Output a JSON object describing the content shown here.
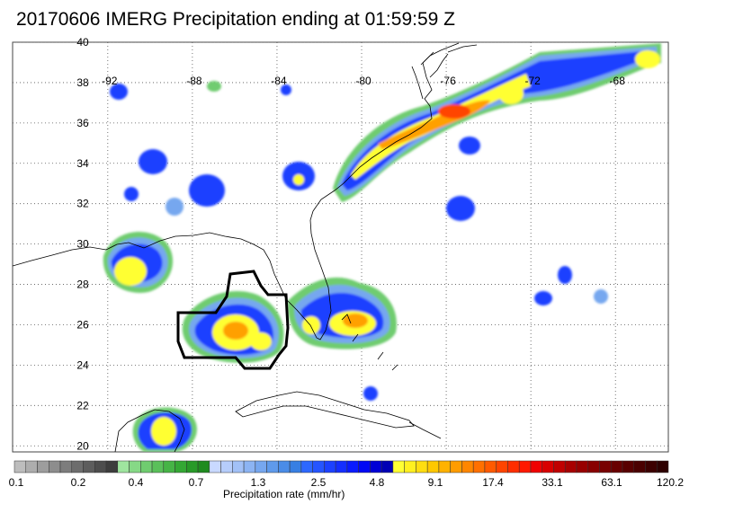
{
  "title": "20170606 IMERG Precipitation ending at 01:59:59 Z",
  "map": {
    "lon_ticks": [
      "-92",
      "-88",
      "-84",
      "-80",
      "-76",
      "-72",
      "-68"
    ],
    "lat_ticks": [
      "40",
      "38",
      "36",
      "34",
      "32",
      "30",
      "28",
      "26",
      "24",
      "22",
      "20"
    ],
    "lon_range": [
      -96.5,
      -65.5
    ],
    "lat_range": [
      19.7,
      40.0
    ],
    "grid": true,
    "gridline_style": "dotted"
  },
  "colorbar": {
    "title": "Precipitation rate (mm/hr)",
    "labels": [
      "0.1",
      "0.2",
      "0.4",
      "0.7",
      "1.3",
      "2.5",
      "4.8",
      "9.1",
      "17.4",
      "33.1",
      "63.1",
      "120.2"
    ],
    "colors": [
      "#bdbdbd",
      "#adadad",
      "#9d9d9d",
      "#8d8d8d",
      "#7d7d7d",
      "#6d6d6d",
      "#5d5d5d",
      "#4d4d4d",
      "#3d3d3d",
      "#9fe59f",
      "#86d986",
      "#6fcc6f",
      "#5ac05a",
      "#46b446",
      "#34a834",
      "#289a28",
      "#1f8b1f",
      "#c9d9ff",
      "#b6cdfb",
      "#a2c1f7",
      "#8cb4f3",
      "#76a7ef",
      "#5f9aeb",
      "#4a8ce7",
      "#377fe3",
      "#2d68ff",
      "#2555ff",
      "#1c41ff",
      "#142eff",
      "#0a1aff",
      "#0008f5",
      "#0000d6",
      "#0000b5",
      "#ffff33",
      "#fff020",
      "#ffdd10",
      "#ffc800",
      "#ffb200",
      "#ff9c00",
      "#ff8600",
      "#ff7000",
      "#ff5a00",
      "#ff4400",
      "#ff2e00",
      "#ff1800",
      "#f00000",
      "#d80000",
      "#c00000",
      "#a80000",
      "#980000",
      "#880000",
      "#780000",
      "#680000",
      "#580000",
      "#4a0000",
      "#3c0000",
      "#2e0000"
    ]
  }
}
